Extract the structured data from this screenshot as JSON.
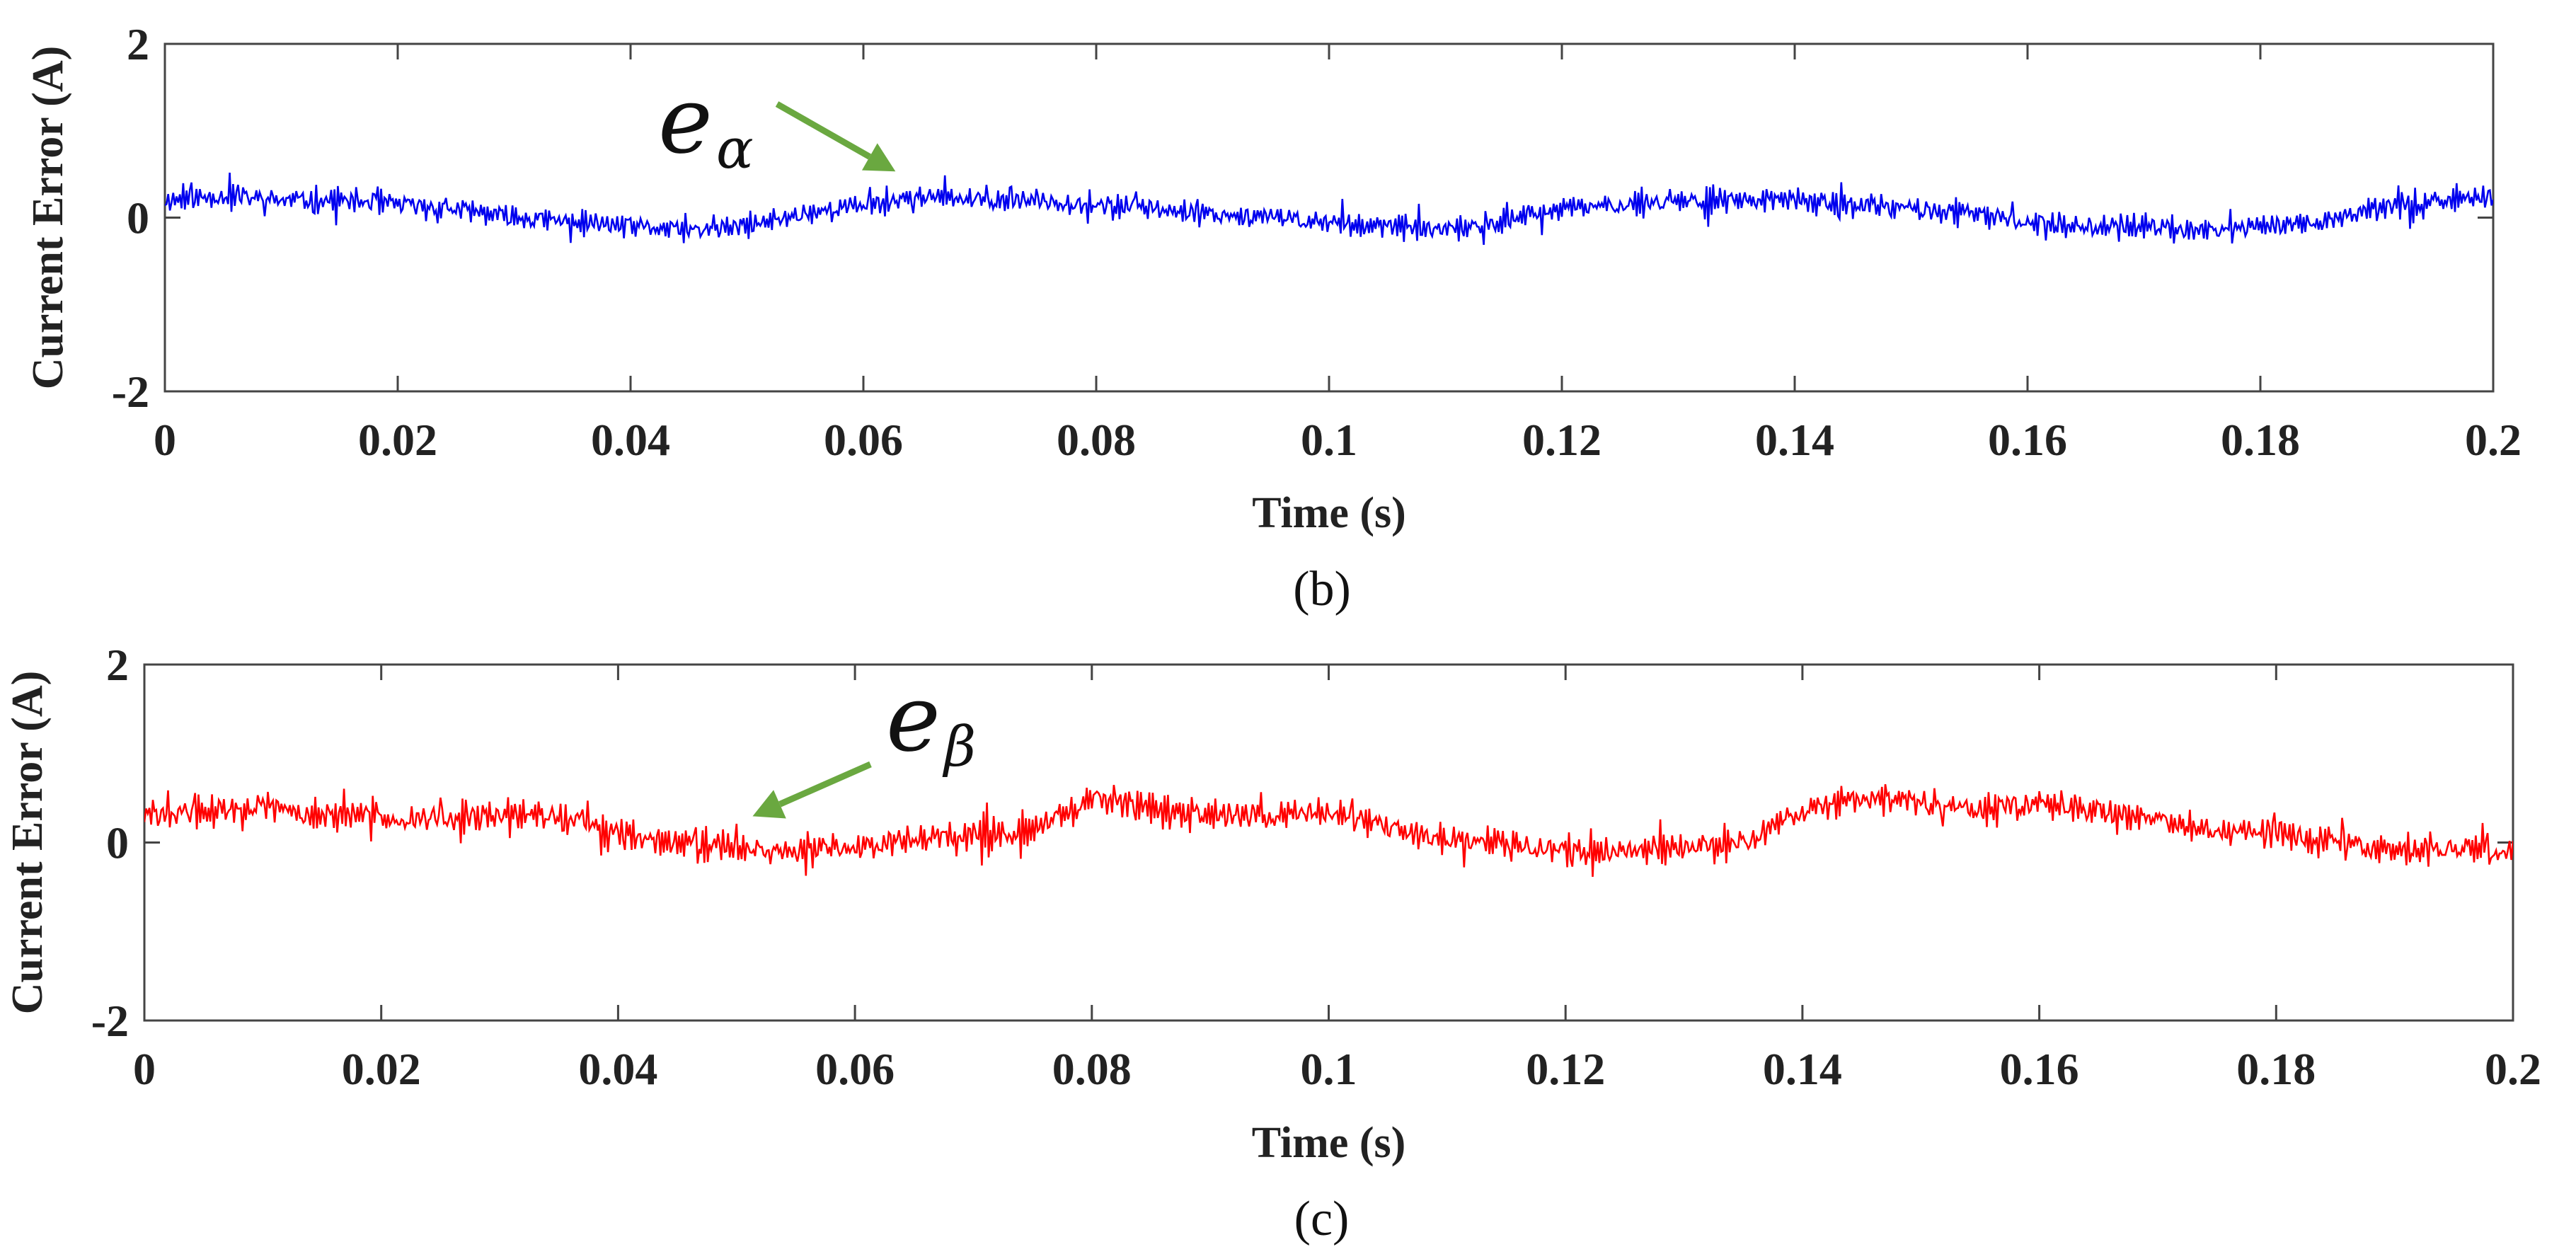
{
  "chart_data": [
    {
      "type": "line",
      "id": "b",
      "caption": "(b)",
      "xlabel": "Time (s)",
      "ylabel": "Current Error (A)",
      "xlim": [
        0,
        0.2
      ],
      "ylim": [
        -2,
        2
      ],
      "xticks": [
        "0",
        "0.02",
        "0.04",
        "0.06",
        "0.08",
        "0.1",
        "0.12",
        "0.14",
        "0.16",
        "0.18",
        "0.2"
      ],
      "yticks": [
        "2",
        "0",
        "-2"
      ],
      "color": "#0000ee",
      "annotation": {
        "symbol": "e",
        "subscript": "α",
        "arrow_color": "#6aa840",
        "target_x": 0.063,
        "target_y": 0.45
      },
      "series": [
        {
          "name": "eα",
          "x": [
            0,
            0.005,
            0.01,
            0.015,
            0.02,
            0.025,
            0.03,
            0.035,
            0.04,
            0.045,
            0.05,
            0.055,
            0.06,
            0.065,
            0.07,
            0.075,
            0.08,
            0.085,
            0.09,
            0.095,
            0.1,
            0.105,
            0.11,
            0.115,
            0.12,
            0.125,
            0.13,
            0.135,
            0.14,
            0.145,
            0.15,
            0.155,
            0.16,
            0.165,
            0.17,
            0.175,
            0.18,
            0.185,
            0.19,
            0.195,
            0.2
          ],
          "values": [
            0.2,
            0.25,
            0.2,
            0.2,
            0.15,
            0.1,
            0.0,
            -0.05,
            -0.1,
            -0.15,
            -0.1,
            0.05,
            0.15,
            0.25,
            0.2,
            0.2,
            0.15,
            0.1,
            0.05,
            0.0,
            -0.05,
            -0.1,
            -0.15,
            -0.05,
            0.1,
            0.15,
            0.2,
            0.2,
            0.2,
            0.15,
            0.1,
            0.05,
            -0.05,
            -0.1,
            -0.1,
            -0.15,
            -0.1,
            -0.05,
            0.1,
            0.2,
            0.25
          ],
          "noise_amplitude": 0.2
        }
      ]
    },
    {
      "type": "line",
      "id": "c",
      "caption": "(c)",
      "xlabel": "Time (s)",
      "ylabel": "Current Error (A)",
      "xlim": [
        0,
        0.2
      ],
      "ylim": [
        -2,
        2
      ],
      "xticks": [
        "0",
        "0.02",
        "0.04",
        "0.06",
        "0.08",
        "0.1",
        "0.12",
        "0.14",
        "0.16",
        "0.18",
        "0.2"
      ],
      "yticks": [
        "2",
        "0",
        "-2"
      ],
      "color": "#ff0000",
      "annotation": {
        "symbol": "e",
        "subscript": "β",
        "arrow_color": "#6aa840",
        "target_x": 0.051,
        "target_y": 0.2
      },
      "series": [
        {
          "name": "eβ",
          "x": [
            0,
            0.005,
            0.01,
            0.015,
            0.02,
            0.025,
            0.03,
            0.035,
            0.04,
            0.045,
            0.05,
            0.055,
            0.06,
            0.065,
            0.07,
            0.075,
            0.08,
            0.085,
            0.09,
            0.095,
            0.1,
            0.105,
            0.11,
            0.115,
            0.12,
            0.125,
            0.13,
            0.135,
            0.14,
            0.145,
            0.15,
            0.155,
            0.16,
            0.165,
            0.17,
            0.175,
            0.18,
            0.185,
            0.19,
            0.195,
            0.2
          ],
          "values": [
            0.3,
            0.35,
            0.4,
            0.3,
            0.3,
            0.25,
            0.3,
            0.3,
            0.1,
            0.0,
            -0.05,
            -0.1,
            -0.05,
            0.05,
            0.1,
            0.15,
            0.5,
            0.4,
            0.3,
            0.3,
            0.35,
            0.15,
            0.05,
            0.0,
            -0.1,
            -0.1,
            -0.05,
            0.0,
            0.35,
            0.5,
            0.45,
            0.35,
            0.45,
            0.35,
            0.25,
            0.15,
            0.1,
            0.0,
            -0.1,
            -0.05,
            -0.1
          ],
          "noise_amplitude": 0.25
        }
      ]
    }
  ]
}
